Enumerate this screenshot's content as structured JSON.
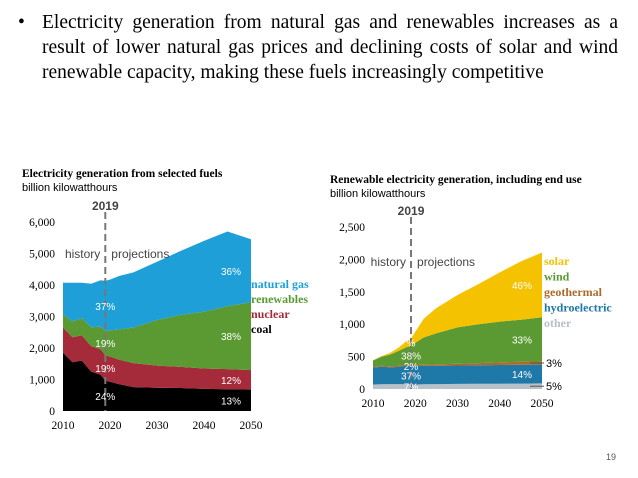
{
  "bullet": {
    "symbol": "•",
    "text": "Electricity generation from natural gas and renewables increases as a result of lower natural gas prices and declining costs of solar and wind renewable capacity, making these fuels increasingly competitive"
  },
  "page_number": "19",
  "chart_data": [
    {
      "type": "area",
      "stacked": true,
      "title": "Electricity generation from selected fuels",
      "subtitle": "billion kilowatthours",
      "x": [
        2010,
        2012,
        2014,
        2016,
        2018,
        2019,
        2020,
        2022,
        2025,
        2030,
        2035,
        2040,
        2045,
        2050
      ],
      "xticks": [
        2010,
        2020,
        2030,
        2040,
        2050
      ],
      "xlim": [
        2010,
        2050
      ],
      "ylim": [
        0,
        6000
      ],
      "yticks": [
        0,
        1000,
        2000,
        3000,
        4000,
        5000,
        6000
      ],
      "ytick_labels": [
        "0",
        "1,000",
        "2,000",
        "3,000",
        "4,000",
        "5,000",
        "6,000"
      ],
      "divider_year": 2019,
      "divider_label": "2019",
      "history_label": "history",
      "projections_label": "projections",
      "series": [
        {
          "name": "coal",
          "color": "#000000",
          "values": [
            1850,
            1550,
            1600,
            1250,
            1150,
            960,
            930,
            850,
            760,
            740,
            730,
            700,
            690,
            680
          ]
        },
        {
          "name": "nuclear",
          "color": "#a52a3a",
          "values": [
            800,
            790,
            800,
            810,
            810,
            810,
            800,
            780,
            760,
            700,
            670,
            650,
            640,
            620
          ]
        },
        {
          "name": "renewables",
          "color": "#5b9a32",
          "values": [
            420,
            500,
            550,
            600,
            720,
            770,
            830,
            960,
            1130,
            1450,
            1650,
            1800,
            2000,
            2150
          ]
        },
        {
          "name": "natural gas",
          "color": "#1e9fd8",
          "values": [
            1000,
            1230,
            1120,
            1380,
            1470,
            1590,
            1610,
            1700,
            1750,
            1850,
            2030,
            2250,
            2370,
            2000
          ]
        }
      ],
      "labels_2019": {
        "natural gas": "37%",
        "renewables": "19%",
        "nuclear": "19%",
        "coal": "24%"
      },
      "labels_2050": {
        "natural gas": "36%",
        "renewables": "38%",
        "nuclear": "12%",
        "coal": "13%"
      },
      "legend": [
        "natural gas",
        "renewables",
        "nuclear",
        "coal"
      ],
      "legend_colors": [
        "#1e9fd8",
        "#5b9a32",
        "#a52a3a",
        "#000000"
      ],
      "legend_placement": "right"
    },
    {
      "type": "area",
      "stacked": true,
      "title": "Renewable electricity generation, including end use",
      "subtitle": "billion kilowatthours",
      "x": [
        2010,
        2012,
        2014,
        2016,
        2018,
        2019,
        2020,
        2022,
        2025,
        2030,
        2035,
        2040,
        2045,
        2050
      ],
      "xticks": [
        2010,
        2020,
        2030,
        2040,
        2050
      ],
      "xlim": [
        2010,
        2050
      ],
      "ylim": [
        0,
        2500
      ],
      "yticks": [
        0,
        500,
        1000,
        1500,
        2000,
        2500
      ],
      "ytick_labels": [
        "0",
        "500",
        "1,000",
        "1,500",
        "2,000",
        "2,500"
      ],
      "divider_year": 2019,
      "divider_label": "2019",
      "history_label": "history",
      "projections_label": "projections",
      "series": [
        {
          "name": "other",
          "color": "#b8c0c8",
          "values": [
            70,
            72,
            75,
            75,
            72,
            70,
            70,
            72,
            75,
            78,
            80,
            82,
            84,
            86
          ]
        },
        {
          "name": "hydroelectric",
          "color": "#1e78a8",
          "values": [
            260,
            270,
            260,
            265,
            290,
            280,
            285,
            285,
            285,
            285,
            285,
            288,
            290,
            290
          ]
        },
        {
          "name": "geothermal",
          "color": "#b06a28",
          "values": [
            15,
            15,
            16,
            16,
            16,
            16,
            16,
            17,
            20,
            28,
            35,
            40,
            45,
            50
          ]
        },
        {
          "name": "wind",
          "color": "#5b9a32",
          "values": [
            95,
            140,
            180,
            230,
            270,
            300,
            340,
            420,
            480,
            560,
            600,
            630,
            650,
            680
          ]
        },
        {
          "name": "solar",
          "color": "#f5c200",
          "values": [
            5,
            10,
            25,
            50,
            95,
            110,
            170,
            290,
            390,
            500,
            620,
            760,
            900,
            1000
          ]
        }
      ],
      "labels_2019": {
        "solar": "%",
        "wind": "38%",
        "geothermal": "2%",
        "hydroelectric": "37%",
        "other": "7%"
      },
      "labels_2050": {
        "solar": "46%",
        "wind": "33%",
        "geothermal": "3%",
        "hydroelectric": "14%",
        "other": "5%"
      },
      "legend": [
        "solar",
        "wind",
        "geothermal",
        "hydroelectric",
        "other"
      ],
      "legend_colors": [
        "#f5c200",
        "#5b9a32",
        "#b06a28",
        "#1e78a8",
        "#b8c0c8"
      ],
      "legend_placement": "right"
    }
  ]
}
